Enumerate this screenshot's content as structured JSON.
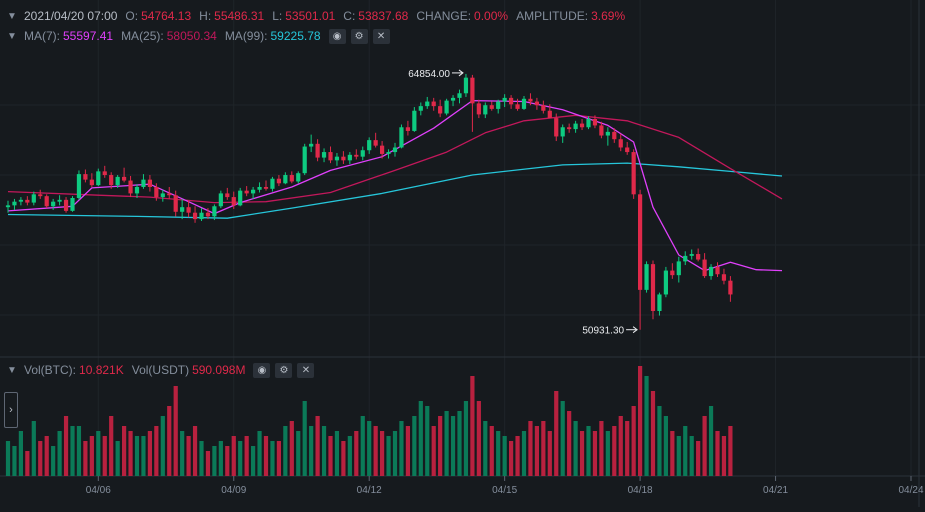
{
  "ohlc_row": {
    "date": "2021/04/20 07:00",
    "open_label": "O:",
    "open": "54764.13",
    "high_label": "H:",
    "high": "55486.31",
    "low_label": "L:",
    "low": "53501.01",
    "close_label": "C:",
    "close": "53837.68",
    "change_label": "CHANGE:",
    "change": "0.00%",
    "amplitude_label": "AMPLITUDE:",
    "amplitude": "3.69%"
  },
  "ma_row": {
    "ma7_label": "MA(7):",
    "ma7": "55597.41",
    "ma25_label": "MA(25):",
    "ma25": "58050.34",
    "ma99_label": "MA(99):",
    "ma99": "59225.78"
  },
  "vol_row": {
    "btc_label": "Vol(BTC):",
    "btc": "10.821K",
    "usdt_label": "Vol(USDT)",
    "usdt": "590.098M"
  },
  "controls": {
    "eye_icon": "eye-icon",
    "settings_icon": "settings-icon",
    "close_icon": "close-icon",
    "expand_icon": "chevron-right-icon"
  },
  "colors": {
    "background": "#161a1e",
    "up": "#0ecb81",
    "down": "#e0294a",
    "up_volume": "#0b7a58",
    "down_volume": "#b8213f",
    "ma7": "#e040fb",
    "ma25": "#c2185b",
    "ma99": "#26c6da",
    "text": "#848e9c"
  },
  "chart_data": {
    "type": "candlestick",
    "price_range": [
      49500,
      66700
    ],
    "x_ticks": [
      {
        "label": "04/06",
        "index": 14
      },
      {
        "label": "04/09",
        "index": 35
      },
      {
        "label": "04/12",
        "index": 56
      },
      {
        "label": "04/15",
        "index": 77
      },
      {
        "label": "04/18",
        "index": 98
      },
      {
        "label": "04/21",
        "index": 119
      },
      {
        "label": "04/24",
        "index": 140
      }
    ],
    "annotations": [
      {
        "label": "64854.00",
        "index": 71,
        "price": 64854.0,
        "kind": "high"
      },
      {
        "label": "50931.30",
        "index": 98,
        "price": 50931.3,
        "kind": "low"
      }
    ],
    "volume_max": 22,
    "candles": [
      [
        57600,
        57950,
        57300,
        57700,
        7
      ],
      [
        57700,
        58050,
        57450,
        57900,
        6
      ],
      [
        57900,
        58150,
        57700,
        58000,
        9
      ],
      [
        58000,
        58200,
        57700,
        57850,
        5
      ],
      [
        57850,
        58450,
        57700,
        58300,
        11
      ],
      [
        58300,
        58550,
        58050,
        58200,
        7
      ],
      [
        58200,
        58300,
        57550,
        57650,
        8
      ],
      [
        57650,
        58050,
        57450,
        57900,
        6
      ],
      [
        57900,
        58250,
        57700,
        58000,
        9
      ],
      [
        58000,
        58150,
        57300,
        57400,
        12
      ],
      [
        57400,
        58200,
        57350,
        58100,
        10
      ],
      [
        58100,
        59600,
        58000,
        59400,
        10
      ],
      [
        59400,
        59650,
        58950,
        59100,
        7
      ],
      [
        59100,
        59450,
        58700,
        58800,
        8
      ],
      [
        58800,
        59700,
        58750,
        59550,
        9
      ],
      [
        59550,
        59850,
        59200,
        59350,
        8
      ],
      [
        59350,
        59500,
        58600,
        58800,
        12
      ],
      [
        58800,
        59350,
        58650,
        59250,
        7
      ],
      [
        59250,
        59750,
        58950,
        59050,
        10
      ],
      [
        59050,
        59300,
        58150,
        58350,
        9
      ],
      [
        58350,
        58850,
        58100,
        58700,
        8
      ],
      [
        58700,
        59400,
        58600,
        59100,
        8
      ],
      [
        59100,
        59350,
        58450,
        58700,
        9
      ],
      [
        58700,
        58900,
        57950,
        58150,
        10
      ],
      [
        58150,
        58550,
        57900,
        58350,
        12
      ],
      [
        58350,
        58700,
        58050,
        58250,
        14
      ],
      [
        58250,
        58500,
        57100,
        57350,
        18
      ],
      [
        57350,
        58050,
        56950,
        57600,
        9
      ],
      [
        57600,
        57950,
        57050,
        57300,
        8
      ],
      [
        57300,
        57650,
        56750,
        56950,
        10
      ],
      [
        56950,
        57550,
        56850,
        57300,
        7
      ],
      [
        57300,
        57550,
        56950,
        57100,
        5
      ],
      [
        57100,
        57750,
        56900,
        57650,
        6
      ],
      [
        57650,
        58500,
        57550,
        58350,
        7
      ],
      [
        58350,
        58650,
        58000,
        58150,
        6
      ],
      [
        58150,
        58450,
        57500,
        57700,
        8
      ],
      [
        57700,
        58650,
        57650,
        58500,
        7
      ],
      [
        58500,
        58750,
        58200,
        58350,
        8
      ],
      [
        58350,
        58700,
        58050,
        58550,
        6
      ],
      [
        58550,
        58950,
        58400,
        58700,
        9
      ],
      [
        58700,
        59050,
        58500,
        58600,
        8
      ],
      [
        58600,
        59250,
        58450,
        59150,
        7
      ],
      [
        59150,
        59350,
        58750,
        58900,
        7
      ],
      [
        58900,
        59500,
        58850,
        59350,
        10
      ],
      [
        59350,
        59550,
        58900,
        59000,
        11
      ],
      [
        59000,
        59550,
        58900,
        59450,
        9
      ],
      [
        59450,
        61050,
        59350,
        60900,
        15
      ],
      [
        60900,
        61550,
        60600,
        61050,
        10
      ],
      [
        61050,
        61300,
        60100,
        60300,
        12
      ],
      [
        60300,
        60800,
        60050,
        60600,
        10
      ],
      [
        60600,
        60900,
        60000,
        60150,
        8
      ],
      [
        60150,
        60550,
        59850,
        60350,
        9
      ],
      [
        60350,
        60650,
        59950,
        60150,
        7
      ],
      [
        60150,
        60600,
        59950,
        60450,
        8
      ],
      [
        60450,
        60750,
        60200,
        60350,
        9
      ],
      [
        60350,
        60900,
        60150,
        60700,
        12
      ],
      [
        60700,
        61400,
        60500,
        61250,
        11
      ],
      [
        61250,
        61650,
        60850,
        60950,
        10
      ],
      [
        60950,
        61200,
        60250,
        60500,
        9
      ],
      [
        60500,
        60750,
        60250,
        60600,
        8
      ],
      [
        60600,
        61100,
        60350,
        60850,
        9
      ],
      [
        60850,
        62100,
        60800,
        61950,
        11
      ],
      [
        61950,
        62300,
        61500,
        61750,
        10
      ],
      [
        61750,
        63050,
        61700,
        62850,
        12
      ],
      [
        62850,
        63300,
        62600,
        63100,
        15
      ],
      [
        63100,
        63600,
        62950,
        63350,
        14
      ],
      [
        63350,
        63550,
        62850,
        63100,
        10
      ],
      [
        63100,
        63450,
        62500,
        62700,
        12
      ],
      [
        62700,
        63500,
        62600,
        63400,
        13
      ],
      [
        63400,
        63700,
        63100,
        63550,
        12
      ],
      [
        63550,
        64000,
        63250,
        63800,
        13
      ],
      [
        63800,
        64854,
        63600,
        64650,
        15
      ],
      [
        64650,
        64800,
        61700,
        63250,
        20
      ],
      [
        63250,
        63450,
        62450,
        62650,
        15
      ],
      [
        62650,
        63300,
        62450,
        63150,
        11
      ],
      [
        63150,
        63350,
        62850,
        62950,
        10
      ],
      [
        62950,
        63450,
        62700,
        63350,
        9
      ],
      [
        63350,
        63750,
        63050,
        63550,
        8
      ],
      [
        63550,
        63700,
        62950,
        63200,
        7
      ],
      [
        63200,
        63500,
        62850,
        62950,
        8
      ],
      [
        62950,
        63650,
        62900,
        63500,
        9
      ],
      [
        63500,
        63800,
        63150,
        63350,
        11
      ],
      [
        63350,
        63550,
        62900,
        63150,
        10
      ],
      [
        63150,
        63400,
        62700,
        62850,
        11
      ],
      [
        62850,
        63200,
        62550,
        62450,
        9
      ],
      [
        62450,
        62700,
        61200,
        61450,
        17
      ],
      [
        61450,
        62100,
        61100,
        61950,
        15
      ],
      [
        61950,
        62150,
        61650,
        61850,
        13
      ],
      [
        61850,
        62300,
        61650,
        62150,
        11
      ],
      [
        62150,
        62400,
        61800,
        61950,
        9
      ],
      [
        61950,
        62550,
        61850,
        62400,
        10
      ],
      [
        62400,
        62600,
        61900,
        62050,
        9
      ],
      [
        62050,
        62250,
        61350,
        61500,
        11
      ],
      [
        61500,
        61950,
        60950,
        61700,
        9
      ],
      [
        61700,
        61900,
        61100,
        61300,
        10
      ],
      [
        61300,
        61600,
        60650,
        60850,
        12
      ],
      [
        60850,
        61150,
        60450,
        60600,
        11
      ],
      [
        60600,
        60750,
        58050,
        58300,
        14
      ],
      [
        58300,
        58550,
        50931.3,
        53100,
        22
      ],
      [
        53100,
        54650,
        52950,
        54500,
        20
      ],
      [
        54500,
        54700,
        51500,
        51950,
        17
      ],
      [
        51950,
        52950,
        51700,
        52850,
        14
      ],
      [
        52850,
        54350,
        52700,
        54150,
        12
      ],
      [
        54150,
        54550,
        53700,
        53900,
        9
      ],
      [
        53900,
        54900,
        53500,
        54650,
        8
      ],
      [
        54650,
        55200,
        54450,
        54950,
        10
      ],
      [
        54950,
        55300,
        54750,
        55050,
        8
      ],
      [
        55050,
        55350,
        54650,
        54750,
        7
      ],
      [
        54750,
        55100,
        53750,
        53850,
        12
      ],
      [
        53850,
        54500,
        53650,
        54350,
        14
      ],
      [
        54350,
        54600,
        53800,
        53950,
        9
      ],
      [
        53950,
        54250,
        53400,
        53600,
        8
      ],
      [
        53600,
        53850,
        52450,
        52850,
        10
      ]
    ],
    "ma7": [
      [
        0,
        57400
      ],
      [
        10,
        57650
      ],
      [
        13,
        58650
      ],
      [
        22,
        58850
      ],
      [
        28,
        57900
      ],
      [
        32,
        57250
      ],
      [
        36,
        57850
      ],
      [
        44,
        58700
      ],
      [
        50,
        59600
      ],
      [
        58,
        60350
      ],
      [
        66,
        61900
      ],
      [
        72,
        63400
      ],
      [
        80,
        63350
      ],
      [
        86,
        62900
      ],
      [
        93,
        62050
      ],
      [
        97,
        61150
      ],
      [
        100,
        57600
      ],
      [
        104,
        55000
      ],
      [
        108,
        54150
      ],
      [
        112,
        54600
      ],
      [
        116,
        54200
      ],
      [
        120,
        54150
      ]
    ],
    "ma25": [
      [
        0,
        58450
      ],
      [
        14,
        58250
      ],
      [
        22,
        58150
      ],
      [
        32,
        57850
      ],
      [
        40,
        57900
      ],
      [
        50,
        58400
      ],
      [
        60,
        59600
      ],
      [
        68,
        60600
      ],
      [
        74,
        61650
      ],
      [
        80,
        62300
      ],
      [
        88,
        62600
      ],
      [
        96,
        62300
      ],
      [
        104,
        61400
      ],
      [
        112,
        59700
      ],
      [
        120,
        58050
      ]
    ],
    "ma99": [
      [
        0,
        57200
      ],
      [
        20,
        57100
      ],
      [
        34,
        57000
      ],
      [
        44,
        57550
      ],
      [
        58,
        58350
      ],
      [
        72,
        59350
      ],
      [
        86,
        59900
      ],
      [
        96,
        60000
      ],
      [
        104,
        59800
      ],
      [
        112,
        59550
      ],
      [
        120,
        59300
      ]
    ]
  }
}
